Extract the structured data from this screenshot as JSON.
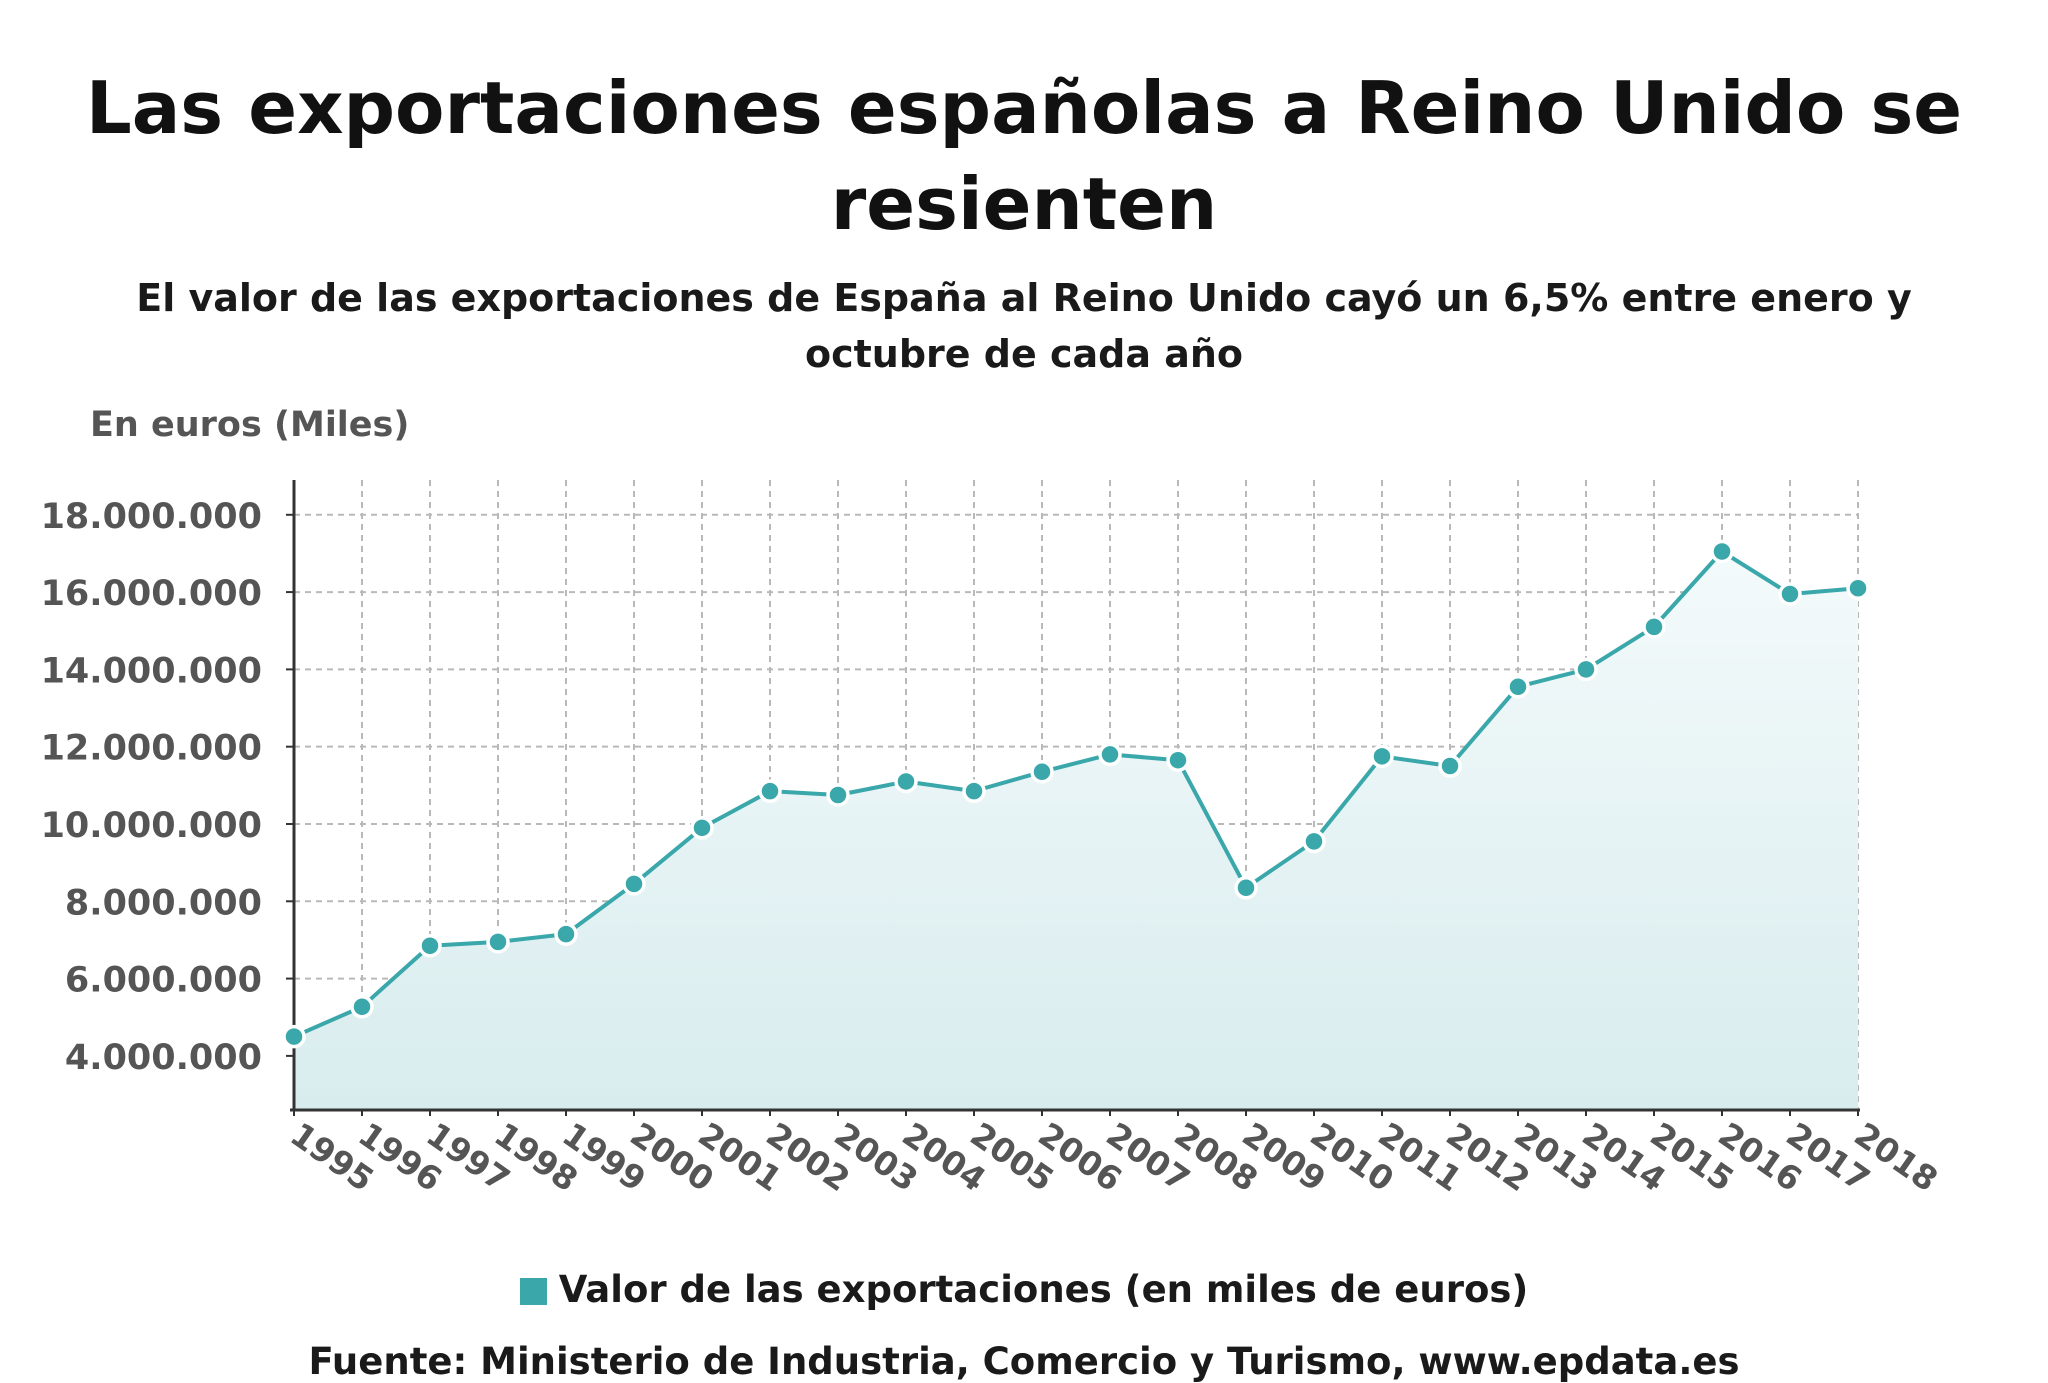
{
  "title": "Las exportaciones españolas a Reino Unido se resienten",
  "subtitle": "El valor de las exportaciones de España al Reino Unido cayó un 6,5% entre enero y octubre de cada año",
  "unit_label": "En euros (Miles)",
  "source": "Fuente: Ministerio de Industria, Comercio y Turismo, www.epdata.es",
  "colors": {
    "line": "#3aa7aa",
    "area_top": "#f4fafb",
    "area_bottom": "#d8ecee",
    "grid": "#b9b9b9"
  },
  "chart_data": {
    "type": "area",
    "title": "Las exportaciones españolas a Reino Unido se resienten",
    "subtitle": "El valor de las exportaciones de España al Reino Unido cayó un 6,5% entre enero y octubre de cada año",
    "ylabel": "En euros (Miles)",
    "categories": [
      "1995",
      "1996",
      "1997",
      "1998",
      "1999",
      "2000",
      "2001",
      "2002",
      "2003",
      "2004",
      "2005",
      "2006",
      "2007",
      "2008",
      "2009",
      "2010",
      "2011",
      "2012",
      "2013",
      "2014",
      "2015",
      "2016",
      "2017",
      "2018"
    ],
    "series": [
      {
        "name": "Valor de las exportaciones (en miles de euros)",
        "values": [
          4500000,
          5270000,
          6850000,
          6950000,
          7150000,
          8450000,
          9900000,
          10850000,
          10750000,
          11100000,
          10850000,
          11350000,
          11800000,
          11650000,
          8350000,
          9550000,
          11750000,
          11500000,
          13550000,
          14000000,
          15100000,
          17050000,
          15950000,
          16100000
        ]
      }
    ],
    "ylim": [
      2600000,
      18900000
    ],
    "yticks": [
      4000000,
      6000000,
      8000000,
      10000000,
      12000000,
      14000000,
      16000000,
      18000000
    ],
    "ytick_labels": [
      "4.000.000",
      "6.000.000",
      "8.000.000",
      "10.000.000",
      "12.000.000",
      "14.000.000",
      "16.000.000",
      "18.000.000"
    ],
    "grid": true,
    "legend_position": "bottom"
  }
}
